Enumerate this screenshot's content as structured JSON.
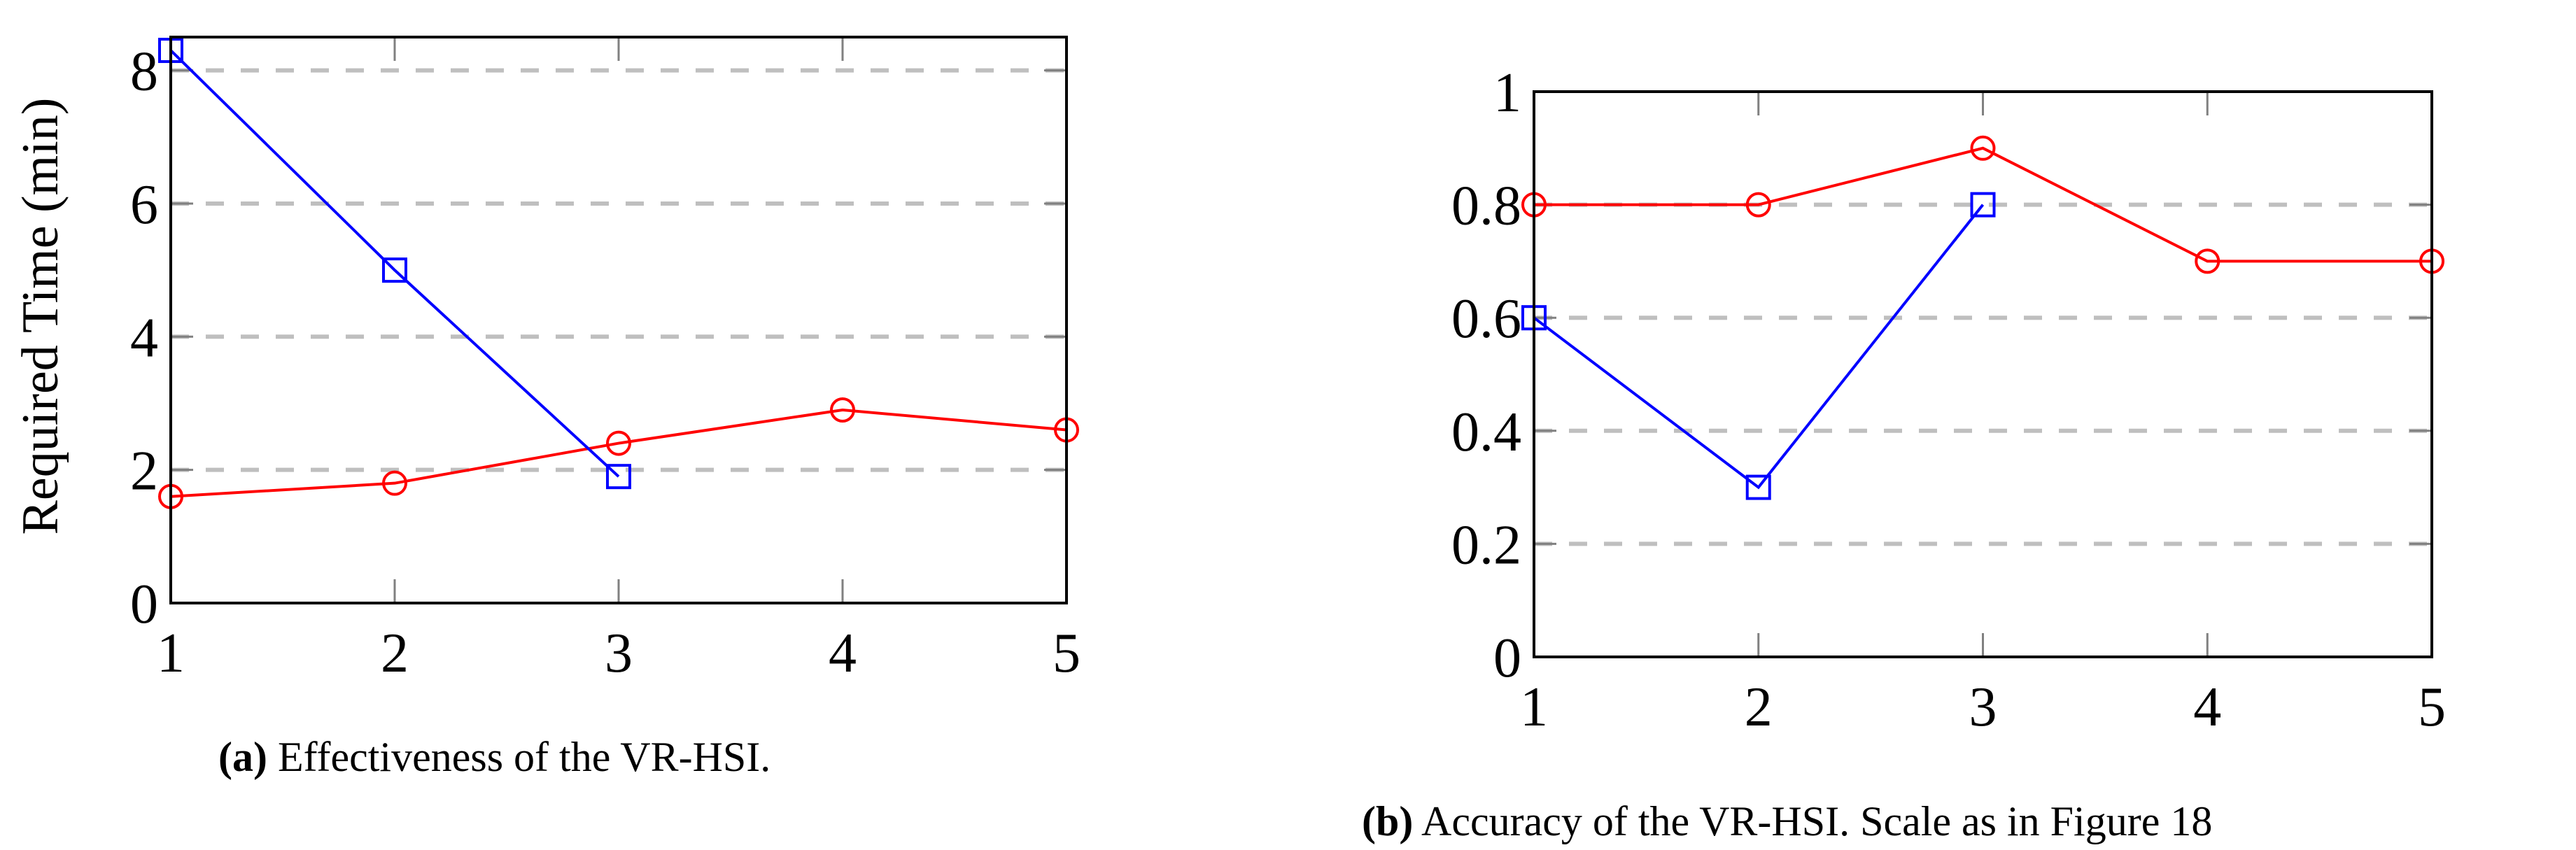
{
  "chart_data": [
    {
      "type": "line",
      "title": "",
      "caption_label": "(a)",
      "caption_text": "Effectiveness of the VR-HSI.",
      "xlabel": "",
      "ylabel": "Required Time (min)",
      "x": [
        1,
        2,
        3,
        4,
        5
      ],
      "xticks": [
        "1",
        "2",
        "3",
        "4",
        "5"
      ],
      "yticks": [
        "0",
        "2",
        "4",
        "6",
        "8"
      ],
      "ylim": [
        0,
        8.5
      ],
      "xlim": [
        1,
        5
      ],
      "grid": "y-dashed",
      "legend": null,
      "series": [
        {
          "name": "red-circle",
          "color": "#ff0000",
          "marker": "circle",
          "x": [
            1,
            2,
            3,
            4,
            5
          ],
          "values": [
            1.6,
            1.8,
            2.4,
            2.9,
            2.6
          ]
        },
        {
          "name": "blue-square",
          "color": "#0000ff",
          "marker": "square",
          "x": [
            1,
            2,
            3
          ],
          "values": [
            8.3,
            5.0,
            1.9
          ]
        }
      ]
    },
    {
      "type": "line",
      "title": "",
      "caption_label": "(b)",
      "caption_text": "Accuracy of the VR-HSI. Scale as in Figure 18",
      "xlabel": "",
      "ylabel": "",
      "x": [
        1,
        2,
        3,
        4,
        5
      ],
      "xticks": [
        "1",
        "2",
        "3",
        "4",
        "5"
      ],
      "yticks": [
        "0",
        "0.2",
        "0.4",
        "0.6",
        "0.8",
        "1"
      ],
      "ylim": [
        0,
        1
      ],
      "xlim": [
        1,
        5
      ],
      "grid": "y-dashed",
      "legend": null,
      "series": [
        {
          "name": "red-circle",
          "color": "#ff0000",
          "marker": "circle",
          "x": [
            1,
            2,
            3,
            4,
            5
          ],
          "values": [
            0.8,
            0.8,
            0.9,
            0.7,
            0.7
          ]
        },
        {
          "name": "blue-square",
          "color": "#0000ff",
          "marker": "square",
          "x": [
            1,
            2,
            3
          ],
          "values": [
            0.6,
            0.3,
            0.8
          ]
        }
      ]
    }
  ]
}
